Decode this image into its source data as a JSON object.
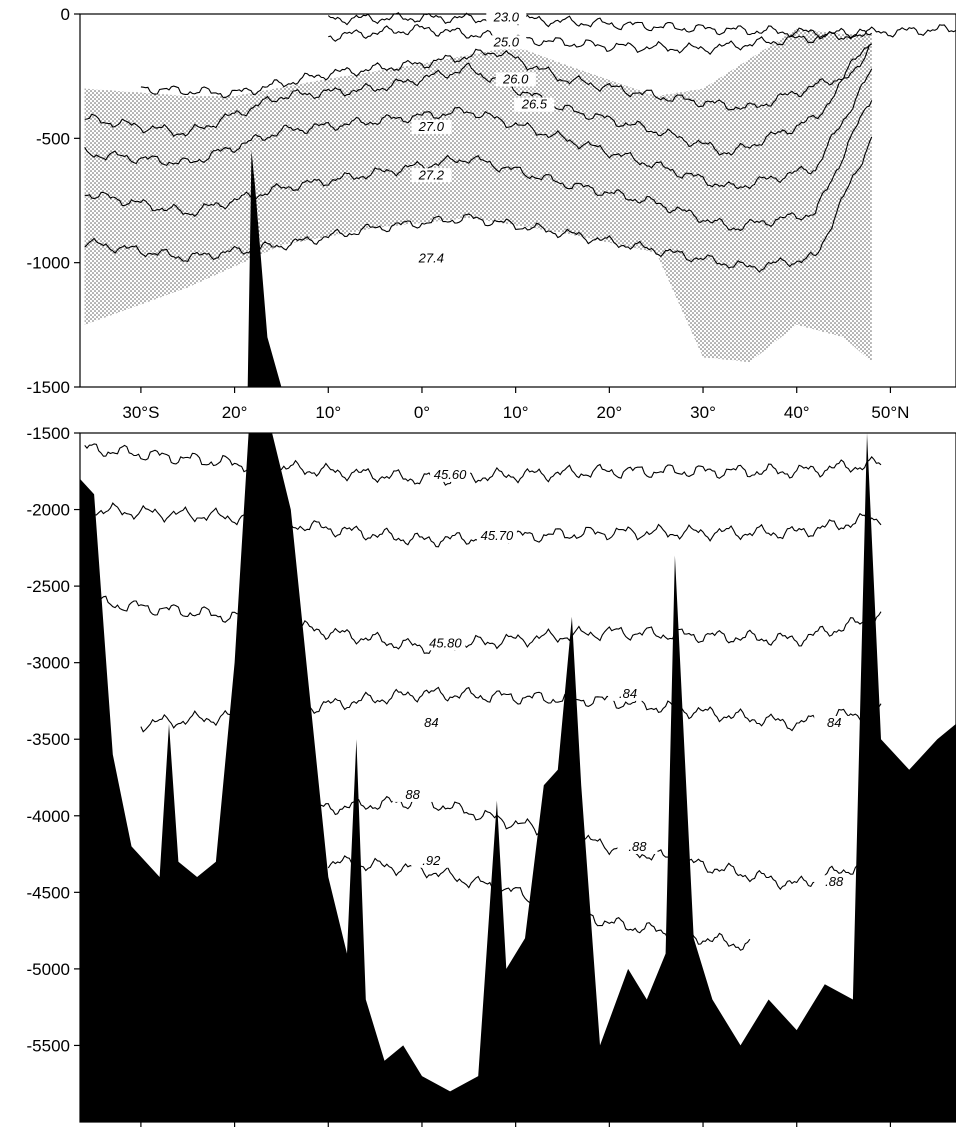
{
  "chart_data": [
    {
      "type": "line",
      "panel": "upper",
      "x_tick_labels": [
        "30°S",
        "20°",
        "10°",
        "0°",
        "10°",
        "20°",
        "30°",
        "40°",
        "50°N"
      ],
      "x_tick_values": [
        -30,
        -20,
        -10,
        0,
        10,
        20,
        30,
        40,
        50
      ],
      "xlim": [
        -36.5,
        57
      ],
      "ylim": [
        -1500,
        0
      ],
      "y_ticks": [
        0,
        -500,
        -1000,
        -1500
      ],
      "y_tick_labels": [
        "0",
        "-500",
        "-1000",
        "-1500"
      ],
      "fill_color": "#000000",
      "stipple_color": "#555555",
      "series": [
        {
          "name": "23.0",
          "values": [
            [
              -10,
              -20
            ],
            [
              0,
              -15
            ],
            [
              10,
              -20
            ],
            [
              20,
              -40
            ],
            [
              30,
              -60
            ],
            [
              45,
              -80
            ],
            [
              57,
              -60
            ]
          ]
        },
        {
          "name": "25.0",
          "values": [
            [
              -10,
              -90
            ],
            [
              0,
              -60
            ],
            [
              10,
              -100
            ],
            [
              20,
              -130
            ],
            [
              30,
              -140
            ],
            [
              40,
              -100
            ],
            [
              48,
              -80
            ]
          ]
        },
        {
          "name": "26.0",
          "values": [
            [
              -30,
              -300
            ],
            [
              -20,
              -320
            ],
            [
              -10,
              -240
            ],
            [
              0,
              -200
            ],
            [
              8,
              -150
            ],
            [
              15,
              -260
            ],
            [
              25,
              -330
            ],
            [
              35,
              -380
            ],
            [
              45,
              -250
            ],
            [
              48,
              -100
            ]
          ]
        },
        {
          "name": "26.5",
          "values": [
            [
              -36,
              -420
            ],
            [
              -25,
              -480
            ],
            [
              -15,
              -330
            ],
            [
              -5,
              -300
            ],
            [
              5,
              -220
            ],
            [
              15,
              -380
            ],
            [
              25,
              -470
            ],
            [
              33,
              -560
            ],
            [
              42,
              -420
            ],
            [
              48,
              -130
            ]
          ]
        },
        {
          "name": "27.0",
          "values": [
            [
              -36,
              -560
            ],
            [
              -25,
              -600
            ],
            [
              -15,
              -470
            ],
            [
              -5,
              -430
            ],
            [
              5,
              -390
            ],
            [
              15,
              -500
            ],
            [
              25,
              -610
            ],
            [
              33,
              -700
            ],
            [
              42,
              -620
            ],
            [
              48,
              -230
            ]
          ]
        },
        {
          "name": "27.2",
          "values": [
            [
              -36,
              -720
            ],
            [
              -25,
              -800
            ],
            [
              -15,
              -700
            ],
            [
              -5,
              -640
            ],
            [
              5,
              -580
            ],
            [
              15,
              -680
            ],
            [
              25,
              -760
            ],
            [
              33,
              -860
            ],
            [
              42,
              -800
            ],
            [
              48,
              -330
            ]
          ]
        },
        {
          "name": "27.4",
          "values": [
            [
              -36,
              -920
            ],
            [
              -25,
              -980
            ],
            [
              -15,
              -930
            ],
            [
              -5,
              -860
            ],
            [
              5,
              -820
            ],
            [
              15,
              -880
            ],
            [
              25,
              -950
            ],
            [
              35,
              -1020
            ],
            [
              42,
              -980
            ],
            [
              48,
              -500
            ]
          ]
        }
      ],
      "labels": [
        {
          "text": "23.0",
          "x": 9,
          "y": -30
        },
        {
          "text": "25.0",
          "x": 9,
          "y": -130
        },
        {
          "text": "26.0",
          "x": 10,
          "y": -280
        },
        {
          "text": "26.5",
          "x": 12,
          "y": -380
        },
        {
          "text": "27.0",
          "x": 1,
          "y": -470
        },
        {
          "text": "27.2",
          "x": 1,
          "y": -665
        },
        {
          "text": "27.4",
          "x": 1,
          "y": -1000
        }
      ]
    },
    {
      "type": "line",
      "panel": "lower",
      "x_tick_values": [
        -30,
        -20,
        -10,
        0,
        10,
        20,
        30,
        40,
        50
      ],
      "xlim": [
        -36.5,
        57
      ],
      "ylim": [
        -6000,
        -1500
      ],
      "y_ticks": [
        -1500,
        -2000,
        -2500,
        -3000,
        -3500,
        -4000,
        -4500,
        -5000,
        -5500
      ],
      "y_tick_labels": [
        "-1500",
        "-2000",
        "-2500",
        "-3000",
        "-3500",
        "-4000",
        "-4500",
        "-5000",
        "-5500"
      ],
      "fill_color": "#000000",
      "series": [
        {
          "name": "45.60",
          "values": [
            [
              -36,
              -1600
            ],
            [
              -20,
              -1700
            ],
            [
              0,
              -1800
            ],
            [
              20,
              -1750
            ],
            [
              40,
              -1750
            ],
            [
              49,
              -1700
            ]
          ]
        },
        {
          "name": "45.70",
          "values": [
            [
              -36,
              -2000
            ],
            [
              -20,
              -2050
            ],
            [
              0,
              -2200
            ],
            [
              20,
              -2150
            ],
            [
              40,
              -2150
            ],
            [
              49,
              -2050
            ]
          ]
        },
        {
          "name": "45.80",
          "values": [
            [
              -36,
              -2600
            ],
            [
              -20,
              -2700
            ],
            [
              0,
              -2900
            ],
            [
              20,
              -2800
            ],
            [
              40,
              -2850
            ],
            [
              49,
              -2700
            ]
          ]
        },
        {
          "name": "84",
          "values": [
            [
              -30,
              -3400
            ],
            [
              -20,
              -3350
            ],
            [
              0,
              -3200
            ],
            [
              20,
              -3250
            ],
            [
              40,
              -3400
            ],
            [
              49,
              -3300
            ]
          ]
        },
        {
          "name": "88",
          "values": [
            [
              -20,
              -4000
            ],
            [
              0,
              -3900
            ],
            [
              20,
              -4200
            ],
            [
              40,
              -4450
            ],
            [
              48,
              -4300
            ]
          ]
        },
        {
          "name": "92",
          "values": [
            [
              -10,
              -4300
            ],
            [
              0,
              -4350
            ],
            [
              10,
              -4500
            ],
            [
              20,
              -4700
            ],
            [
              35,
              -4850
            ]
          ]
        }
      ],
      "labels": [
        {
          "text": "45.60",
          "x": 3,
          "y": -1800
        },
        {
          "text": "45.70",
          "x": 8,
          "y": -2200
        },
        {
          "text": "45.80",
          "x": 2.5,
          "y": -2900
        },
        {
          "text": ".84",
          "x": 22,
          "y": -3230
        },
        {
          "text": "84",
          "x": 1,
          "y": -3420
        },
        {
          "text": "84",
          "x": 44,
          "y": -3420
        },
        {
          "text": "88",
          "x": -1,
          "y": -3890
        },
        {
          "text": ".88",
          "x": 23,
          "y": -4230
        },
        {
          "text": ".88",
          "x": 44,
          "y": -4460
        },
        {
          "text": ".92",
          "x": 1,
          "y": -4320
        }
      ]
    }
  ]
}
